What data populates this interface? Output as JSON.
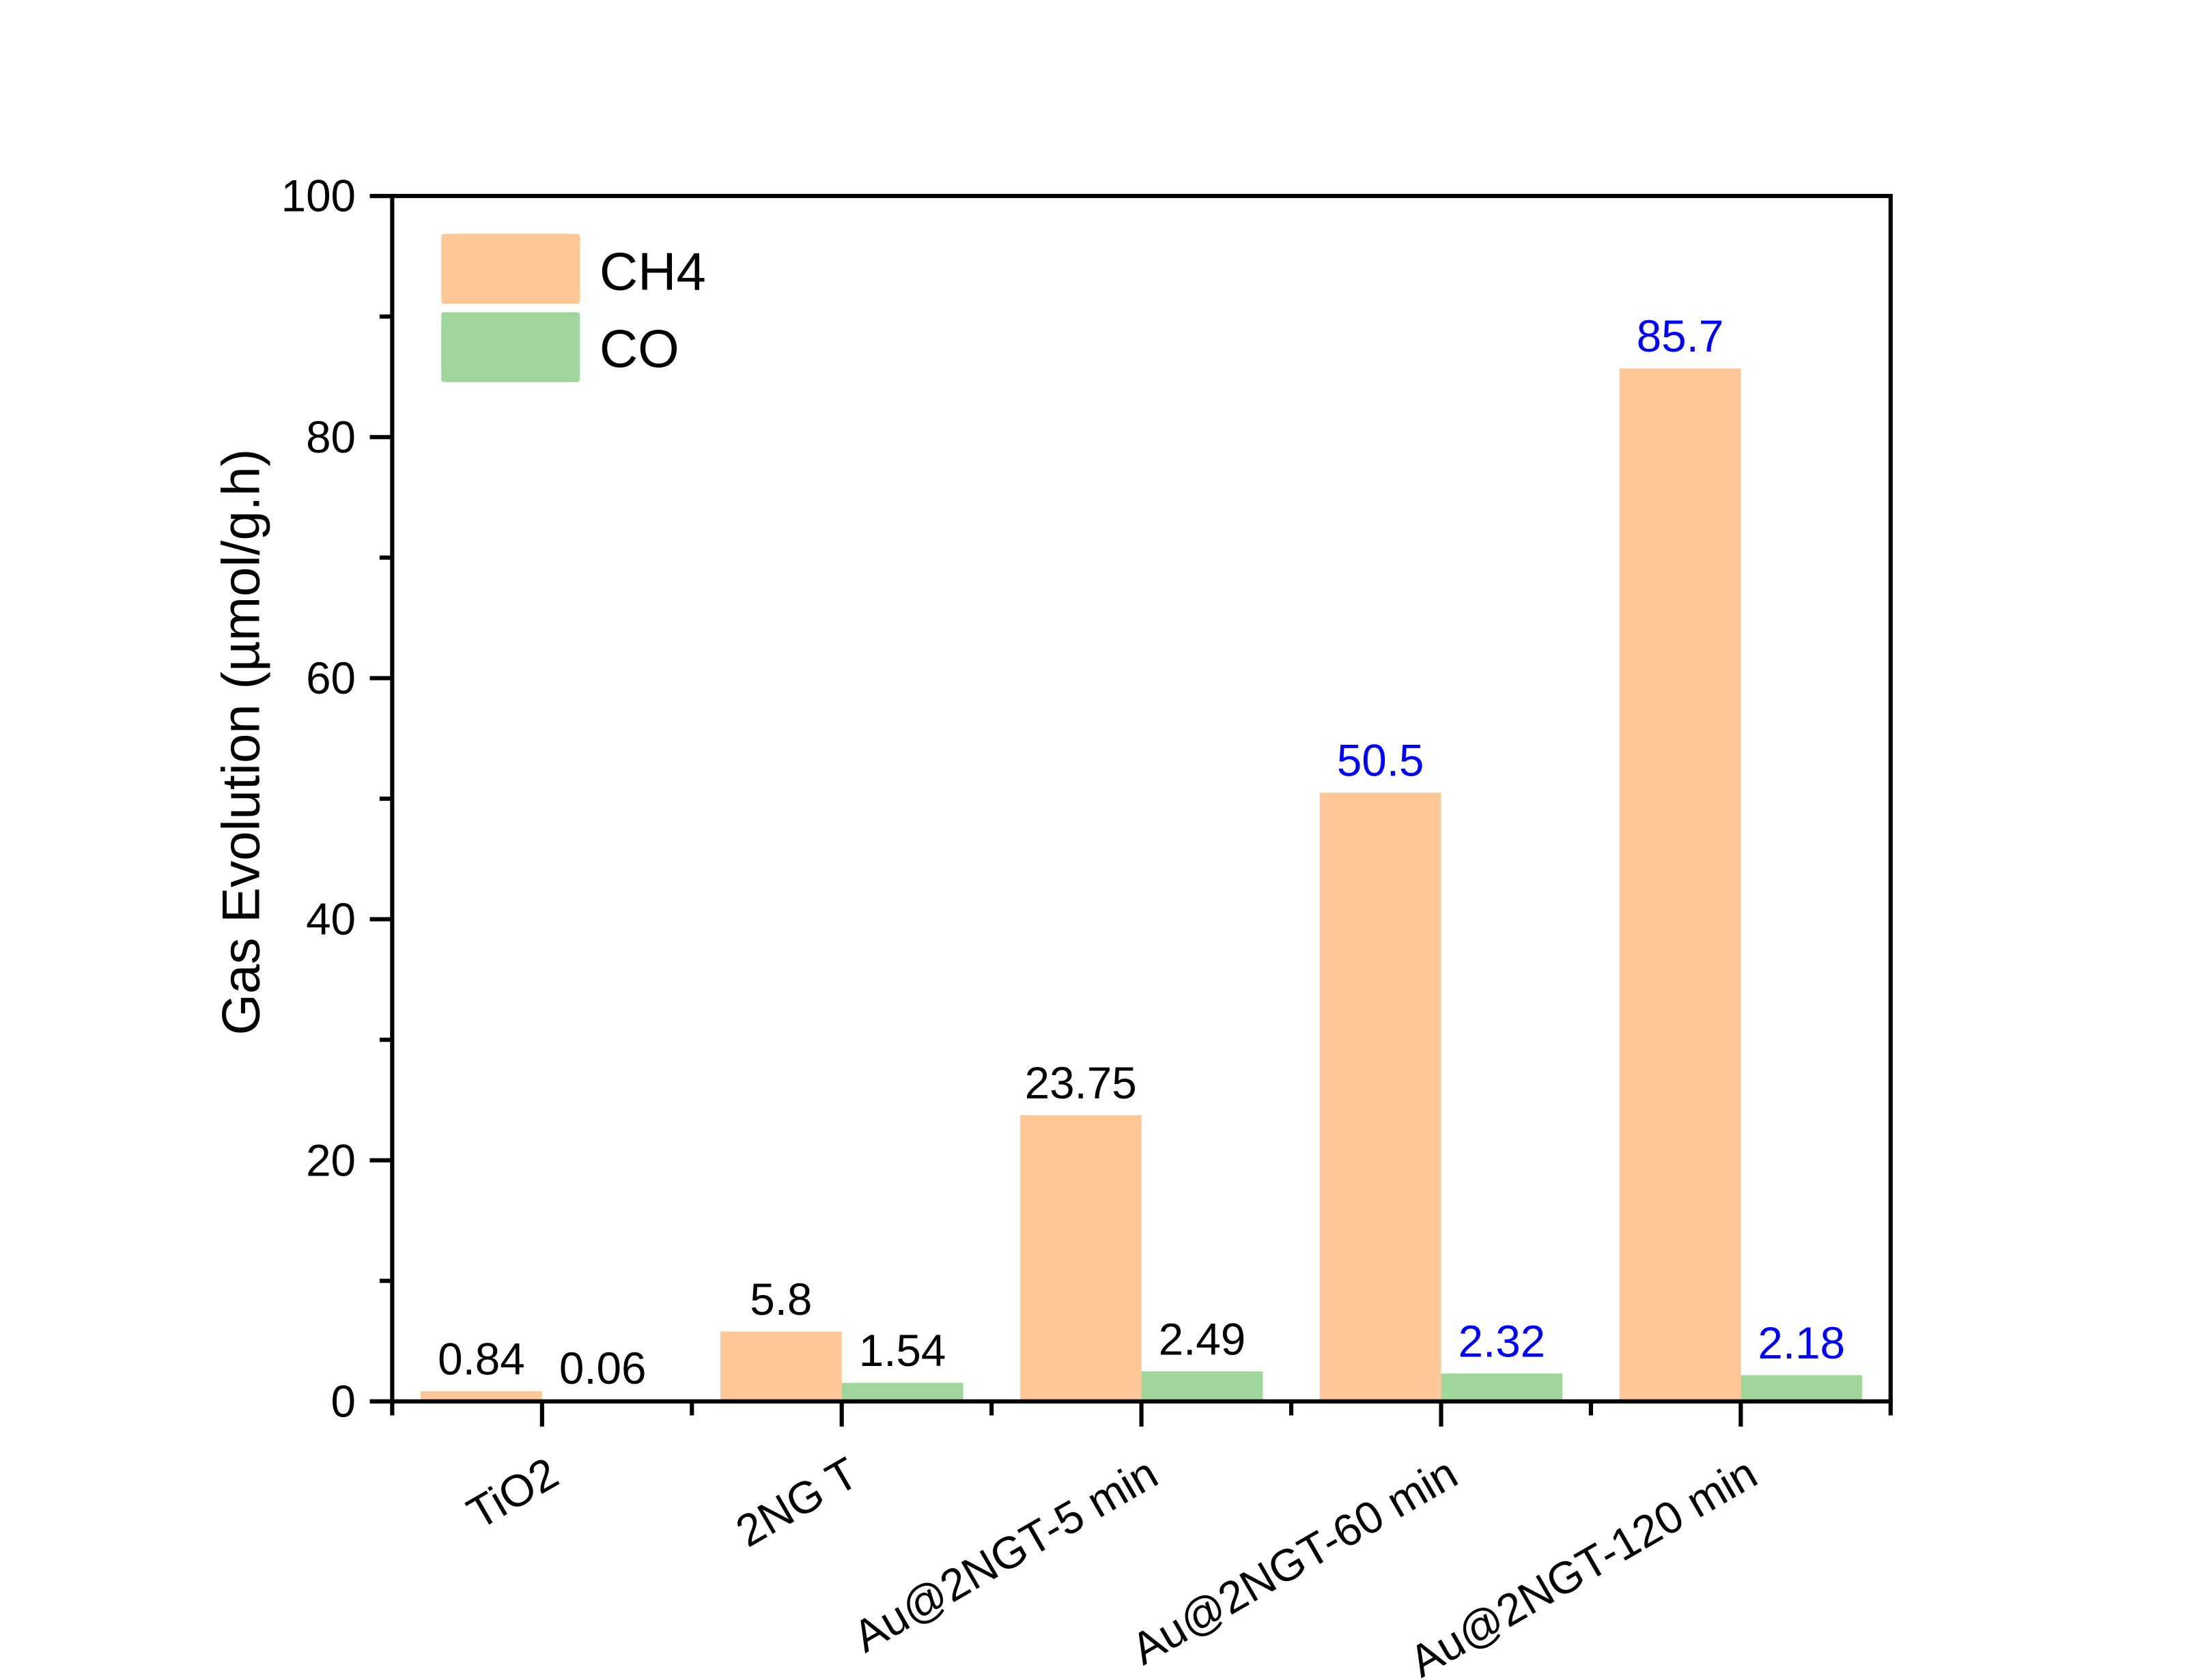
{
  "chart_data": {
    "type": "bar",
    "title": "",
    "xlabel": "",
    "ylabel": "Gas Evolution (µmol/g.h)",
    "ylim": [
      0,
      100
    ],
    "yticks": [
      0,
      20,
      40,
      60,
      80,
      100
    ],
    "ytick_labels": [
      "0",
      "20",
      "40",
      "60",
      "80",
      "100"
    ],
    "categories": [
      "TiO2",
      "2NG T",
      "Au@2NGT-5 min",
      "Au@2NGT-60 min",
      "Au@2NGT-120 min"
    ],
    "series": [
      {
        "name": "CH4",
        "color": "#fdc797",
        "values": [
          0.84,
          5.8,
          23.75,
          50.5,
          85.7
        ],
        "labels": [
          "0.84",
          "5.8",
          "23.75",
          "50.5",
          "85.7"
        ],
        "label_colors": [
          "#000000",
          "#000000",
          "#000000",
          "#0000ff",
          "#0000ff"
        ]
      },
      {
        "name": "CO",
        "color": "#9fd69c",
        "values": [
          0.06,
          1.54,
          2.49,
          2.32,
          2.18
        ],
        "labels": [
          "0.06",
          "1.54",
          "2.49",
          "2.32",
          "2.18"
        ],
        "label_colors": [
          "#000000",
          "#000000",
          "#000000",
          "#0000ff",
          "#0000ff"
        ]
      }
    ],
    "legend": {
      "position": "top-left",
      "entries": [
        "CH4",
        "CO"
      ]
    },
    "grid": false
  }
}
